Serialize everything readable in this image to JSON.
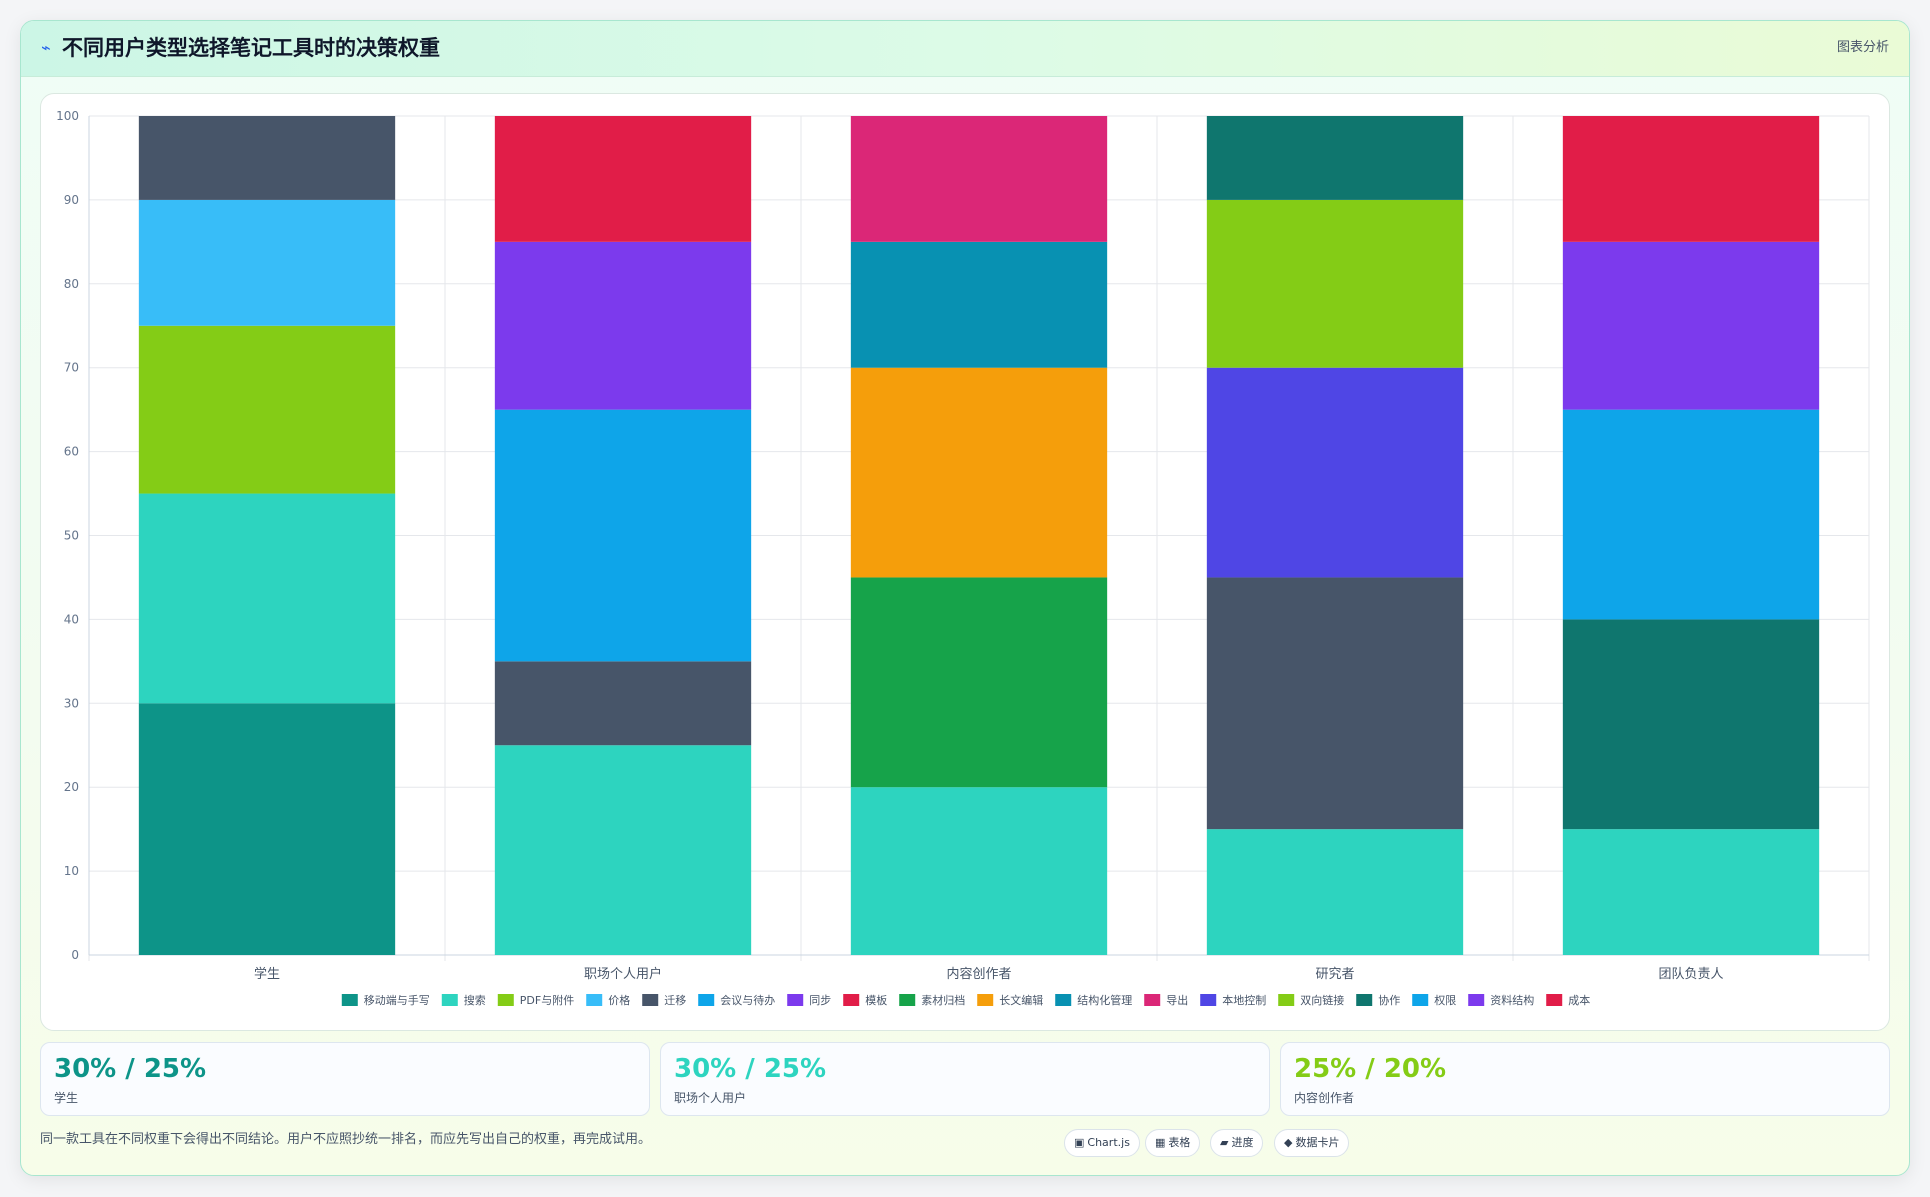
{
  "header": {
    "icon": "chart-line-icon",
    "title": "不同用户类型选择笔记工具时的决策权重",
    "badge": "图表分析"
  },
  "chart_data": {
    "type": "bar",
    "stacked": true,
    "categories": [
      "学生",
      "职场个人用户",
      "内容创作者",
      "研究者",
      "团队负责人"
    ],
    "ylim": [
      0,
      100
    ],
    "yticks": [
      0,
      10,
      20,
      30,
      40,
      50,
      60,
      70,
      80,
      90,
      100
    ],
    "grid": true,
    "legend_position": "bottom",
    "series": [
      {
        "name": "移动端与手写",
        "color": "#0d9488",
        "values": [
          30,
          0,
          0,
          0,
          0
        ]
      },
      {
        "name": "搜索",
        "color": "#2dd4bf",
        "values": [
          25,
          25,
          20,
          15,
          15
        ]
      },
      {
        "name": "PDF与附件",
        "color": "#84cc16",
        "values": [
          20,
          0,
          0,
          0,
          0
        ]
      },
      {
        "name": "价格",
        "color": "#38bdf8",
        "values": [
          15,
          0,
          0,
          0,
          0
        ]
      },
      {
        "name": "迁移",
        "color": "#475569",
        "values": [
          10,
          10,
          0,
          30,
          0
        ]
      },
      {
        "name": "会议与待办",
        "color": "#0ea5e9",
        "values": [
          0,
          30,
          0,
          0,
          0
        ]
      },
      {
        "name": "同步",
        "color": "#7c3aed",
        "values": [
          0,
          20,
          0,
          0,
          0
        ]
      },
      {
        "name": "模板",
        "color": "#e11d48",
        "values": [
          0,
          15,
          0,
          0,
          0
        ]
      },
      {
        "name": "素材归档",
        "color": "#16a34a",
        "values": [
          0,
          0,
          25,
          0,
          0
        ]
      },
      {
        "name": "长文编辑",
        "color": "#f59e0b",
        "values": [
          0,
          0,
          25,
          0,
          0
        ]
      },
      {
        "name": "结构化管理",
        "color": "#0891b2",
        "values": [
          0,
          0,
          15,
          0,
          0
        ]
      },
      {
        "name": "导出",
        "color": "#db2777",
        "values": [
          0,
          0,
          15,
          0,
          0
        ]
      },
      {
        "name": "本地控制",
        "color": "#4f46e5",
        "values": [
          0,
          0,
          0,
          25,
          0
        ]
      },
      {
        "name": "双向链接",
        "color": "#84cc16",
        "values": [
          0,
          0,
          0,
          20,
          0
        ]
      },
      {
        "name": "协作",
        "color": "#0f766e",
        "values": [
          0,
          0,
          0,
          10,
          25
        ]
      },
      {
        "name": "权限",
        "color": "#0ea5e9",
        "values": [
          0,
          0,
          0,
          0,
          25
        ]
      },
      {
        "name": "资料结构",
        "color": "#7c3aed",
        "values": [
          0,
          0,
          0,
          0,
          20
        ]
      },
      {
        "name": "成本",
        "color": "#e11d48",
        "values": [
          0,
          0,
          0,
          0,
          15
        ]
      }
    ]
  },
  "stats": [
    {
      "value": "30% / 25%",
      "label": "学生",
      "color": "#0d9488"
    },
    {
      "value": "30% / 25%",
      "label": "职场个人用户",
      "color": "#2dd4bf"
    },
    {
      "value": "25% / 20%",
      "label": "内容创作者",
      "color": "#84cc16"
    }
  ],
  "footnote": "同一款工具在不同权重下会得出不同结论。用户不应照抄统一排名，而应先写出自己的权重，再完成试用。",
  "tags": [
    {
      "icon": "chart-icon",
      "glyph": "▣",
      "label": "Chart.js"
    },
    {
      "icon": "table-icon",
      "glyph": "▦",
      "label": "表格"
    },
    {
      "icon": "progress-icon",
      "glyph": "▰",
      "label": "进度"
    },
    {
      "icon": "data-card-icon",
      "glyph": "◆",
      "label": "数据卡片"
    }
  ]
}
